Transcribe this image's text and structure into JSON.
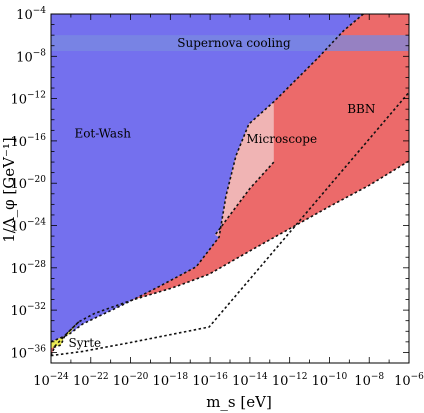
{
  "chart_data": {
    "type": "area",
    "title": "",
    "xlabel": "m_s [eV]",
    "ylabel": "1/Λ_φ [GeV⁻¹]",
    "x_scale": "log",
    "y_scale": "log",
    "xlim": [
      1e-24,
      1e-06
    ],
    "ylim": [
      1e-37,
      0.0001
    ],
    "x_ticks": [
      {
        "value": 1e-24,
        "sup": "−24"
      },
      {
        "value": 1e-22,
        "sup": "−22"
      },
      {
        "value": 1e-20,
        "sup": "−20"
      },
      {
        "value": 1e-18,
        "sup": "−18"
      },
      {
        "value": 1e-16,
        "sup": "−16"
      },
      {
        "value": 1e-14,
        "sup": "−14"
      },
      {
        "value": 1e-12,
        "sup": "−12"
      },
      {
        "value": 1e-10,
        "sup": "−10"
      },
      {
        "value": 1e-08,
        "sup": "−8"
      },
      {
        "value": 1e-06,
        "sup": "−6"
      }
    ],
    "y_ticks": [
      {
        "value": 0.0001,
        "sup": "−4"
      },
      {
        "value": 1e-08,
        "sup": "−8"
      },
      {
        "value": 1e-12,
        "sup": "−12"
      },
      {
        "value": 1e-16,
        "sup": "−16"
      },
      {
        "value": 1e-20,
        "sup": "−20"
      },
      {
        "value": 1e-24,
        "sup": "−24"
      },
      {
        "value": 1e-28,
        "sup": "−28"
      },
      {
        "value": 1e-32,
        "sup": "−32"
      },
      {
        "value": 1e-36,
        "sup": "−36"
      }
    ],
    "tick_base": "10",
    "series": [
      {
        "name": "BBN",
        "color": "#ec6a6a",
        "boundary_log10": [
          [
            -24,
            -36.3
          ],
          [
            -23.8,
            -35.4
          ],
          [
            -23.3,
            -34.4
          ],
          [
            -22.6,
            -33.1
          ],
          [
            -21.8,
            -32.3
          ],
          [
            -20,
            -31.1
          ],
          [
            -17.9,
            -29.9
          ],
          [
            -16.05,
            -28.6
          ],
          [
            -14,
            -26.4
          ],
          [
            -12,
            -24.3
          ],
          [
            -10,
            -22.2
          ],
          [
            -8,
            -20.2
          ],
          [
            -6,
            -17.9
          ],
          [
            -6,
            -4
          ],
          [
            -7.85,
            -4
          ],
          [
            -24,
            -4
          ]
        ],
        "lower_edge_log10": [
          [
            -24,
            -36.3
          ],
          [
            -22.4,
            -35.9
          ],
          [
            -20.1,
            -35.1
          ],
          [
            -16.05,
            -33.6
          ],
          [
            -6,
            -11.4
          ]
        ]
      },
      {
        "name": "Eöt-Wash",
        "color": "#7470ee",
        "boundary_log10": [
          [
            -24,
            -4
          ],
          [
            -8.3,
            -4
          ],
          [
            -9.3,
            -5.6
          ],
          [
            -10.6,
            -8.2
          ],
          [
            -12.8,
            -12.3
          ],
          [
            -14.05,
            -14.4
          ],
          [
            -14.7,
            -17.4
          ],
          [
            -15.2,
            -21.2
          ],
          [
            -15.55,
            -25.1
          ],
          [
            -16.7,
            -27.9
          ],
          [
            -18.6,
            -29.8
          ],
          [
            -20.5,
            -31.6
          ],
          [
            -22.4,
            -33.3
          ],
          [
            -23.1,
            -34.3
          ],
          [
            -24,
            -35.0
          ]
        ]
      },
      {
        "name": "Microscope",
        "color": "#f0b4b4",
        "boundary_log10": [
          [
            -15.55,
            -25.1
          ],
          [
            -15.2,
            -21.2
          ],
          [
            -14.7,
            -17.4
          ],
          [
            -14.05,
            -14.4
          ],
          [
            -12.8,
            -12.3
          ],
          [
            -12.8,
            -18.0
          ],
          [
            -14.0,
            -20.5
          ],
          [
            -15.0,
            -23.0
          ],
          [
            -15.75,
            -24.9
          ]
        ]
      },
      {
        "name": "Syrte",
        "color": "#ecec56",
        "boundary_log10": [
          [
            -24,
            -35.0
          ],
          [
            -23.1,
            -34.3
          ],
          [
            -22.6,
            -33.1
          ],
          [
            -23.3,
            -34.4
          ],
          [
            -23.5,
            -35.3
          ],
          [
            -24,
            -35.6
          ]
        ]
      }
    ],
    "band": {
      "name": "Supernova cooling",
      "y_range_log10": [
        -7.5,
        -6.0
      ],
      "color": "#7a8ae0"
    },
    "labels": {
      "eotwash": "Eot-Wash",
      "bbn": "BBN",
      "microscope": "Microscope",
      "syrte": "Syrte",
      "supernova": "Supernova cooling"
    },
    "grid": false,
    "legend": "none"
  }
}
